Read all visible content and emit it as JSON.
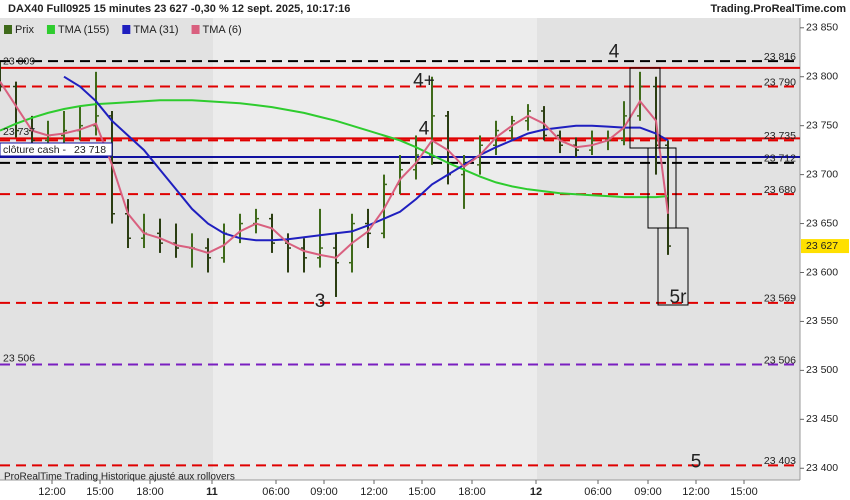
{
  "header": {
    "title": "DAX40 Full0925 15 minutes 23 627 -0,30 % 12 sept. 2025, 10:17:16",
    "site": "Trading.ProRealTime.com"
  },
  "footer_note": "ProRealTime Trading  Historique ajusté aux rollovers",
  "chart_data": {
    "type": "ohlc",
    "xlim": [
      0,
      200
    ],
    "ylim": [
      23388,
      23860
    ],
    "xticks": [
      {
        "value": 13,
        "label": "12:00"
      },
      {
        "value": 25,
        "label": "15:00"
      },
      {
        "value": 37.5,
        "label": "18:00"
      },
      {
        "value": 53,
        "label": "11"
      },
      {
        "value": 69,
        "label": "06:00"
      },
      {
        "value": 81,
        "label": "09:00"
      },
      {
        "value": 93.5,
        "label": "12:00"
      },
      {
        "value": 105.5,
        "label": "15:00"
      },
      {
        "value": 118,
        "label": "18:00"
      },
      {
        "value": 134,
        "label": "12"
      },
      {
        "value": 149.5,
        "label": "06:00"
      },
      {
        "value": 162,
        "label": "09:00"
      },
      {
        "value": 174,
        "label": "12:00"
      },
      {
        "value": 186,
        "label": "15:00"
      }
    ],
    "yticks": [
      {
        "value": 23850,
        "label": "23 850"
      },
      {
        "value": 23800,
        "label": "23 800"
      },
      {
        "value": 23750,
        "label": "23 750"
      },
      {
        "value": 23700,
        "label": "23 700"
      },
      {
        "value": 23650,
        "label": "23 650"
      },
      {
        "value": 23600,
        "label": "23 600"
      },
      {
        "value": 23550,
        "label": "23 550"
      },
      {
        "value": 23500,
        "label": "23 500"
      },
      {
        "value": 23450,
        "label": "23 450"
      },
      {
        "value": 23400,
        "label": "23 400"
      }
    ],
    "x": [
      0,
      4,
      8,
      12,
      16,
      20,
      24,
      28,
      32,
      36,
      40,
      44,
      48,
      52,
      56,
      60,
      64,
      68,
      72,
      76,
      80,
      84,
      88,
      92,
      96,
      100,
      104,
      108,
      112,
      116,
      120,
      124,
      128,
      132,
      136,
      140,
      144,
      148,
      152,
      156,
      160,
      164,
      167
    ],
    "series": [
      {
        "name": "Prix",
        "type": "ohlc",
        "color": "#3f6a1a",
        "values": [
          [
            23805,
            23815,
            23785,
            23790
          ],
          [
            23790,
            23795,
            23738,
            23745
          ],
          [
            23745,
            23760,
            23720,
            23735
          ],
          [
            23735,
            23755,
            23725,
            23740
          ],
          [
            23740,
            23765,
            23730,
            23745
          ],
          [
            23745,
            23770,
            23735,
            23750
          ],
          [
            23750,
            23805,
            23740,
            23760
          ],
          [
            23760,
            23765,
            23650,
            23660
          ],
          [
            23660,
            23675,
            23625,
            23635
          ],
          [
            23635,
            23660,
            23625,
            23640
          ],
          [
            23640,
            23655,
            23620,
            23630
          ],
          [
            23630,
            23650,
            23615,
            23625
          ],
          [
            23625,
            23640,
            23605,
            23625
          ],
          [
            23625,
            23635,
            23600,
            23615
          ],
          [
            23615,
            23650,
            23610,
            23640
          ],
          [
            23640,
            23660,
            23630,
            23650
          ],
          [
            23650,
            23665,
            23640,
            23655
          ],
          [
            23655,
            23660,
            23620,
            23630
          ],
          [
            23630,
            23640,
            23600,
            23625
          ],
          [
            23625,
            23635,
            23600,
            23615
          ],
          [
            23615,
            23665,
            23605,
            23625
          ],
          [
            23625,
            23640,
            23575,
            23610
          ],
          [
            23610,
            23660,
            23600,
            23650
          ],
          [
            23650,
            23665,
            23625,
            23640
          ],
          [
            23640,
            23700,
            23635,
            23690
          ],
          [
            23690,
            23720,
            23680,
            23705
          ],
          [
            23705,
            23740,
            23695,
            23720
          ],
          [
            23720,
            23800,
            23710,
            23760
          ],
          [
            23760,
            23765,
            23690,
            23700
          ],
          [
            23700,
            23720,
            23665,
            23710
          ],
          [
            23710,
            23740,
            23700,
            23730
          ],
          [
            23730,
            23755,
            23720,
            23745
          ],
          [
            23745,
            23760,
            23735,
            23755
          ],
          [
            23755,
            23772,
            23745,
            23765
          ],
          [
            23765,
            23770,
            23735,
            23740
          ],
          [
            23740,
            23745,
            23722,
            23730
          ],
          [
            23730,
            23738,
            23718,
            23725
          ],
          [
            23725,
            23745,
            23720,
            23735
          ],
          [
            23735,
            23745,
            23725,
            23735
          ],
          [
            23735,
            23775,
            23730,
            23760
          ],
          [
            23760,
            23805,
            23755,
            23790
          ],
          [
            23790,
            23800,
            23700,
            23730
          ],
          [
            23730,
            23735,
            23618,
            23627
          ]
        ]
      },
      {
        "name": "TMA (155)",
        "type": "line",
        "color": "#2ecc2e",
        "values": [
          23745,
          23752,
          23758,
          23763,
          23767,
          23770,
          23772,
          23773,
          23774,
          23775,
          23776,
          23776,
          23776,
          23775,
          23774,
          23773,
          23771,
          23769,
          23766,
          23763,
          23759,
          23755,
          23750,
          23745,
          23740,
          23735,
          23728,
          23720,
          23712,
          23705,
          23698,
          23692,
          23688,
          23685,
          23683,
          23681,
          23680,
          23679,
          23678,
          23677,
          23677,
          23677,
          23678
        ]
      },
      {
        "name": "TMA (31)",
        "type": "line",
        "color": "#1f1fbf",
        "values": [
          null,
          null,
          null,
          null,
          23800,
          23790,
          23775,
          23755,
          23740,
          23725,
          23705,
          23685,
          23665,
          23650,
          23640,
          23635,
          23633,
          23633,
          23634,
          23636,
          23638,
          23640,
          23642,
          23648,
          23655,
          23662,
          23675,
          23690,
          23700,
          23710,
          23720,
          23728,
          23735,
          23742,
          23746,
          23748,
          23750,
          23750,
          23749,
          23748,
          23748,
          23742,
          23735
        ]
      },
      {
        "name": "TMA (6)",
        "type": "line",
        "color": "#d9607f",
        "values": [
          23795,
          23770,
          23745,
          23740,
          23742,
          23746,
          23752,
          23710,
          23660,
          23640,
          23635,
          23628,
          23625,
          23620,
          23628,
          23642,
          23650,
          23645,
          23630,
          23622,
          23618,
          23615,
          23630,
          23642,
          23665,
          23695,
          23712,
          23735,
          23725,
          23708,
          23720,
          23738,
          23750,
          23760,
          23752,
          23735,
          23728,
          23730,
          23735,
          23748,
          23775,
          23755,
          23660
        ]
      }
    ],
    "levels": [
      {
        "value": 23816,
        "color": "#000000",
        "dash": true,
        "label_right": "23 816"
      },
      {
        "value": 23809,
        "color": "#e00000",
        "dash": false,
        "label_left": "23 809"
      },
      {
        "value": 23790,
        "color": "#e00000",
        "dash": true,
        "label_right": "23 790"
      },
      {
        "value": 23737,
        "color": "#e00000",
        "dash": false,
        "label_left": "23 737"
      },
      {
        "value": 23735,
        "color": "#e00000",
        "dash": true,
        "label_right": "23 735"
      },
      {
        "value": 23718,
        "color": "#1010a0",
        "dash": false,
        "tag": "clôture cash -",
        "label_left": "23 718"
      },
      {
        "value": 23712,
        "color": "#000000",
        "dash": true,
        "label_right": "23 712"
      },
      {
        "value": 23680,
        "color": "#e00000",
        "dash": true,
        "label_right": "23 680"
      },
      {
        "value": 23569,
        "color": "#e00000",
        "dash": true,
        "label_right": "23 569"
      },
      {
        "value": 23506,
        "color": "#7a1fc0",
        "dash": true,
        "label_left": "23 506",
        "label_right": "23 506"
      },
      {
        "value": 23403,
        "color": "#e00000",
        "dash": true,
        "label_right": "23 403"
      }
    ],
    "last_price": {
      "value": 23627,
      "label": "23 627"
    },
    "annotations": [
      {
        "text": "4",
        "x": 153.5,
        "y": 23825,
        "color": "#000000"
      },
      {
        "text": "4+",
        "x": 106,
        "y": 23795,
        "color": "#e03030"
      },
      {
        "text": "4",
        "x": 106,
        "y": 23746,
        "color": "#e03030"
      },
      {
        "text": "3",
        "x": 80,
        "y": 23570,
        "color": "#e03030"
      },
      {
        "text": "5r",
        "x": 169.5,
        "y": 23574,
        "color": "#e03030"
      },
      {
        "text": "5",
        "x": 174,
        "y": 23406,
        "color": "#e03030"
      }
    ]
  }
}
